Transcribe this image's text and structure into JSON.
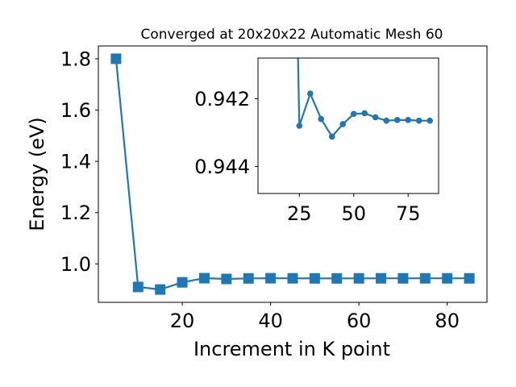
{
  "chart_data": [
    {
      "type": "line",
      "title": "Converged at 20x20x22 Automatic Mesh 60",
      "xlabel": "Increment in K point",
      "ylabel": "Energy (eV)",
      "xlim": [
        1,
        89
      ],
      "ylim": [
        0.85,
        1.85
      ],
      "xticks": [
        "20",
        "40",
        "60",
        "80"
      ],
      "yticks": [
        "1.0",
        "1.2",
        "1.4",
        "1.6",
        "1.8"
      ],
      "marker": "square",
      "color": "#1f77b4",
      "grid": false,
      "series": [
        {
          "x": [
            5,
            10,
            15,
            20,
            25,
            30,
            35,
            40,
            45,
            50,
            55,
            60,
            65,
            70,
            75,
            80,
            85
          ],
          "y": [
            1.8,
            0.91,
            0.9,
            0.928,
            0.9442,
            0.9412,
            0.9433,
            0.944,
            0.9437,
            0.9434,
            0.9433,
            0.9435,
            0.9436,
            0.9436,
            0.9436,
            0.9436,
            0.9436
          ]
        }
      ]
    },
    {
      "type": "line",
      "inset": true,
      "xlim": [
        6,
        89
      ],
      "ylim": [
        0.9448,
        0.9408
      ],
      "xticks": [
        "25",
        "50",
        "75"
      ],
      "yticks": [
        "0.942",
        "0.944"
      ],
      "marker": "circle",
      "color": "#1f77b4",
      "grid": false,
      "series": [
        {
          "x": [
            25,
            30,
            35,
            40,
            45,
            50,
            55,
            60,
            65,
            70,
            75,
            80,
            85
          ],
          "y": [
            0.9428,
            0.94185,
            0.9426,
            0.94312,
            0.94275,
            0.94245,
            0.94243,
            0.94255,
            0.94265,
            0.94263,
            0.94263,
            0.94265,
            0.94265
          ]
        }
      ]
    }
  ]
}
